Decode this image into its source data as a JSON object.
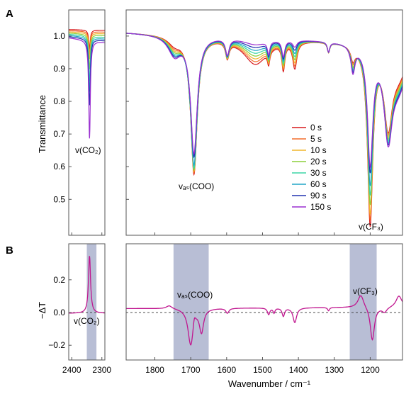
{
  "chart_data": [
    {
      "panel": "A",
      "type": "line",
      "ylabel": "Transmittance",
      "ylim": [
        0.39,
        1.08
      ],
      "yticks": [
        0.5,
        0.6,
        0.7,
        0.8,
        0.9,
        1.0
      ],
      "ytick_labels": [
        "0.5",
        "0.6",
        "0.7",
        "0.8",
        "0.9",
        "1.0"
      ],
      "xlim_left": [
        2410,
        2290
      ],
      "xlim_right": [
        1880,
        1110
      ],
      "legend_position": "center-right",
      "series": [
        {
          "name": "0 s",
          "color": "#d7191c"
        },
        {
          "name": "5 s",
          "color": "#f46d2c"
        },
        {
          "name": "10 s",
          "color": "#f1b52c"
        },
        {
          "name": "20 s",
          "color": "#8ccf3a"
        },
        {
          "name": "30 s",
          "color": "#3bd6a6"
        },
        {
          "name": "60 s",
          "color": "#22a6c7"
        },
        {
          "name": "90 s",
          "color": "#2233b0"
        },
        {
          "name": "150 s",
          "color": "#9a2fd0"
        }
      ],
      "peaks": {
        "co2": {
          "x": 2341,
          "minima": [
            0.945,
            0.93,
            0.915,
            0.885,
            0.85,
            0.82,
            0.78,
            0.68
          ]
        },
        "coo": {
          "x": 1691,
          "minima": [
            0.58,
            0.585,
            0.59,
            0.595,
            0.6,
            0.61,
            0.635,
            0.645
          ]
        },
        "cf3": {
          "x": 1200,
          "minima": [
            0.46,
            0.48,
            0.5,
            0.53,
            0.56,
            0.59,
            0.63,
            0.65
          ]
        }
      }
    },
    {
      "panel": "B",
      "type": "line",
      "ylabel": "−ΔT",
      "ylim": [
        -0.29,
        0.42
      ],
      "yticks": [
        -0.2,
        0.0,
        0.2
      ],
      "ytick_labels": [
        "−0.2",
        "0.0",
        "0.2"
      ],
      "xlabel": "Wavenumber / cm⁻¹",
      "xticks_left": [
        2400,
        2300
      ],
      "xtick_labels_left": [
        "2400",
        "2300"
      ],
      "xticks_right": [
        1800,
        1700,
        1600,
        1500,
        1400,
        1300,
        1200
      ],
      "xtick_labels_right": [
        "1800",
        "1700",
        "1600",
        "1500",
        "1400",
        "1300",
        "1200"
      ],
      "series": [
        {
          "color": "#c0168f"
        }
      ],
      "shaded_bands": [
        [
          2350,
          2318
        ],
        [
          1748,
          1650
        ],
        [
          1257,
          1182
        ]
      ],
      "band_color": "#b4bad3",
      "peaks": {
        "co2": 0.35,
        "coo_min": -0.225,
        "coo_min2": -0.14,
        "cf3_max": 0.08,
        "cf3_min": -0.205
      }
    }
  ],
  "figure": {
    "panel_labels": [
      "A",
      "B"
    ],
    "annotations": {
      "co2_a": "v(CO₂)",
      "coo_a": "vₐₛ(COO)",
      "cf3_a": "v(CF₃)",
      "co2_b": "v(CO₂)",
      "coo_b": "vₐₛ(COO)",
      "cf3_b": "v(CF₃)"
    }
  }
}
